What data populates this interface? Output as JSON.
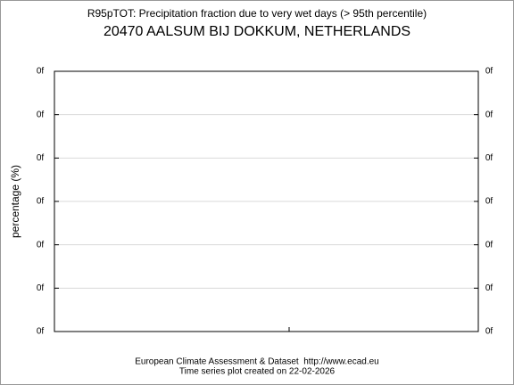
{
  "chart_data": {
    "type": "line",
    "title": "R95pTOT: Precipitation fraction due to very wet days (> 95th percentile)",
    "subtitle": "20470 AALSUM BIJ DOKKUM, NETHERLANDS",
    "ylabel": "percentage (%)",
    "ytick_labels": [
      "0f",
      "0f",
      "0f",
      "0f",
      "0f",
      "0f",
      "0f"
    ],
    "y2tick_labels": [
      "0f",
      "0f",
      "0f",
      "0f",
      "0f",
      "0f",
      "0f"
    ],
    "grid": true,
    "footer": [
      "European Climate Assessment & Dataset  http://www.ecad.eu",
      "Time series plot created on 22-02-2026"
    ]
  }
}
